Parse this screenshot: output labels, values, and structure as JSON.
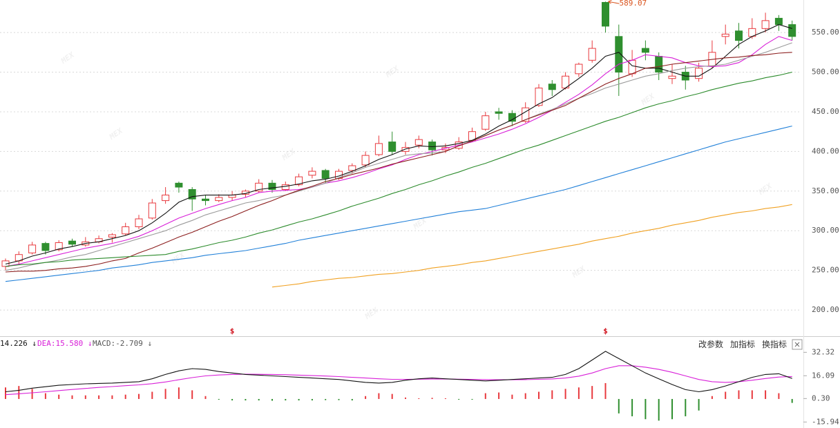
{
  "chart_data": [
    {
      "type": "candlestick",
      "open": [
        255,
        262,
        272,
        284,
        276,
        287,
        282,
        286,
        292,
        296,
        305,
        316,
        338,
        360,
        352,
        340,
        338,
        342,
        346,
        350,
        360,
        352,
        358,
        370,
        376,
        366,
        376,
        383,
        396,
        412,
        400,
        408,
        412,
        402,
        404,
        414,
        428,
        450,
        448,
        438,
        458,
        485,
        480,
        498,
        515,
        588,
        545,
        498,
        530,
        520,
        492,
        500,
        492,
        508,
        545,
        552,
        545,
        555,
        568,
        560
      ],
      "high": [
        265,
        274,
        286,
        286,
        288,
        290,
        292,
        294,
        297,
        310,
        320,
        340,
        355,
        362,
        355,
        345,
        346,
        350,
        352,
        365,
        364,
        362,
        372,
        380,
        378,
        378,
        385,
        400,
        420,
        425,
        412,
        420,
        415,
        410,
        418,
        430,
        450,
        455,
        452,
        462,
        485,
        490,
        500,
        512,
        540,
        589.07,
        560,
        528,
        540,
        525,
        510,
        508,
        512,
        540,
        560,
        562,
        568,
        575,
        572,
        565
      ],
      "low": [
        250,
        258,
        270,
        270,
        274,
        280,
        280,
        284,
        285,
        294,
        302,
        314,
        334,
        348,
        325,
        332,
        336,
        338,
        342,
        348,
        348,
        350,
        356,
        366,
        360,
        364,
        372,
        380,
        394,
        396,
        396,
        404,
        395,
        398,
        402,
        412,
        426,
        440,
        432,
        436,
        456,
        470,
        478,
        494,
        512,
        550,
        470,
        494,
        515,
        490,
        485,
        478,
        488,
        505,
        535,
        530,
        542,
        550,
        552,
        540
      ],
      "close": [
        262,
        270,
        282,
        275,
        285,
        283,
        286,
        290,
        295,
        305,
        315,
        335,
        345,
        355,
        340,
        338,
        342,
        345,
        350,
        360,
        352,
        358,
        368,
        375,
        366,
        375,
        382,
        395,
        410,
        400,
        405,
        415,
        402,
        405,
        412,
        425,
        445,
        448,
        438,
        455,
        480,
        478,
        495,
        510,
        530,
        558,
        500,
        515,
        525,
        500,
        495,
        490,
        505,
        525,
        548,
        540,
        555,
        565,
        560,
        545
      ],
      "up_color": "#e8383d",
      "down_color": "#2f8f2f",
      "series": [
        {
          "color": "#111111",
          "values": [
            258,
            262,
            268,
            272,
            277,
            280,
            284,
            286,
            290,
            294,
            300,
            310,
            322,
            336,
            343,
            345,
            345,
            345,
            347,
            352,
            354,
            356,
            359,
            363,
            365,
            369,
            375,
            382,
            390,
            396,
            403,
            407,
            406,
            407,
            410,
            414,
            422,
            432,
            440,
            450,
            460,
            468,
            480,
            492,
            505,
            520,
            525,
            508,
            505,
            505,
            500,
            495,
            495,
            505,
            520,
            535,
            545,
            552,
            560,
            555
          ]
        },
        {
          "color": "#d81ed8",
          "values": [
            255,
            258,
            262,
            266,
            270,
            274,
            278,
            281,
            284,
            288,
            293,
            300,
            308,
            316,
            322,
            328,
            333,
            338,
            342,
            348,
            350,
            351,
            352,
            355,
            360,
            363,
            367,
            372,
            378,
            383,
            390,
            396,
            400,
            404,
            408,
            412,
            417,
            422,
            428,
            435,
            443,
            452,
            462,
            472,
            484,
            498,
            510,
            515,
            522,
            520,
            518,
            512,
            508,
            507,
            508,
            512,
            522,
            535,
            545,
            540
          ]
        },
        {
          "color": "#9a9a9a",
          "values": [
            250,
            253,
            257,
            260,
            263,
            267,
            270,
            275,
            280,
            285,
            290,
            295,
            300,
            307,
            313,
            320,
            325,
            330,
            335,
            338,
            342,
            345,
            350,
            355,
            360,
            367,
            373,
            380,
            385,
            390,
            395,
            397,
            398,
            400,
            407,
            413,
            420,
            427,
            433,
            440,
            447,
            453,
            460,
            467,
            473,
            480,
            485,
            490,
            495,
            498,
            502,
            505,
            507,
            508,
            510,
            515,
            520,
            525,
            531,
            537
          ]
        },
        {
          "color": "#8b1c1c",
          "values": [
            248,
            249,
            249,
            250,
            252,
            253,
            255,
            258,
            262,
            265,
            272,
            278,
            285,
            292,
            298,
            305,
            312,
            318,
            325,
            332,
            338,
            345,
            351,
            356,
            362,
            366,
            371,
            375,
            379,
            384,
            388,
            392,
            396,
            400,
            407,
            413,
            420,
            427,
            433,
            440,
            446,
            452,
            458,
            467,
            476,
            485,
            492,
            498,
            505,
            507,
            510,
            512,
            514,
            516,
            518,
            519,
            521,
            522,
            524,
            525
          ]
        },
        {
          "color": "#2a8a2a",
          "values": [
            255,
            257,
            258,
            260,
            261,
            263,
            264,
            265,
            266,
            267,
            268,
            269,
            270,
            274,
            277,
            281,
            285,
            288,
            292,
            297,
            301,
            306,
            311,
            315,
            320,
            325,
            331,
            336,
            341,
            347,
            352,
            358,
            363,
            369,
            374,
            380,
            385,
            391,
            397,
            403,
            408,
            414,
            420,
            426,
            432,
            438,
            443,
            449,
            455,
            460,
            464,
            469,
            473,
            478,
            482,
            486,
            489,
            493,
            496,
            500
          ]
        },
        {
          "color": "#1f7fd8",
          "values": [
            236,
            238,
            240,
            242,
            244,
            246,
            248,
            250,
            253,
            255,
            257,
            260,
            262,
            264,
            266,
            269,
            271,
            273,
            275,
            278,
            281,
            284,
            288,
            291,
            294,
            297,
            300,
            303,
            306,
            309,
            312,
            315,
            318,
            321,
            324,
            326,
            328,
            332,
            336,
            340,
            344,
            348,
            352,
            357,
            362,
            367,
            372,
            377,
            382,
            387,
            392,
            397,
            402,
            407,
            412,
            416,
            420,
            424,
            428,
            432
          ]
        },
        {
          "color": "#f0a020",
          "values": [
            null,
            null,
            null,
            null,
            null,
            null,
            null,
            null,
            null,
            null,
            null,
            null,
            null,
            null,
            null,
            null,
            null,
            null,
            null,
            null,
            229,
            231,
            233,
            236,
            238,
            240,
            241,
            243,
            245,
            246,
            248,
            250,
            253,
            255,
            257,
            260,
            262,
            265,
            268,
            271,
            274,
            277,
            280,
            283,
            287,
            290,
            293,
            297,
            300,
            303,
            307,
            310,
            313,
            317,
            320,
            323,
            325,
            328,
            330,
            333
          ]
        }
      ],
      "annotation": "589.07",
      "markers": [
        null,
        null,
        null,
        null,
        null,
        null,
        null,
        null,
        null,
        null,
        null,
        null,
        null,
        null,
        null,
        null,
        null,
        "$",
        null,
        null,
        null,
        null,
        null,
        null,
        null,
        null,
        null,
        null,
        null,
        null,
        null,
        null,
        null,
        null,
        null,
        null,
        null,
        null,
        null,
        null,
        null,
        null,
        null,
        null,
        null,
        "$",
        null,
        null,
        null,
        null,
        null,
        null,
        null,
        null,
        null,
        null,
        null,
        null,
        null,
        null
      ],
      "watermark": "MEX",
      "ylim": [
        167,
        591
      ],
      "yticks": [
        {
          "value": 200,
          "label": "200.00"
        },
        {
          "value": 250,
          "label": "250.00"
        },
        {
          "value": 300,
          "label": "300.00"
        },
        {
          "value": 350,
          "label": "350.00"
        },
        {
          "value": 400,
          "label": "400.00"
        },
        {
          "value": 450,
          "label": "450.00"
        },
        {
          "value": 500,
          "label": "500.00"
        },
        {
          "value": 550,
          "label": "550.00"
        }
      ],
      "grid": true
    },
    {
      "type": "macd",
      "dif": {
        "color": "#111111",
        "label": "14.226 ↓",
        "values": [
          5,
          6,
          7.5,
          8.5,
          9.5,
          10,
          10.5,
          10.8,
          11,
          11.5,
          12,
          14,
          17,
          19.5,
          21,
          20.5,
          19,
          18,
          17,
          16.5,
          16,
          15.5,
          15,
          14.5,
          14,
          13.5,
          12.5,
          11.5,
          11,
          11.5,
          13,
          14,
          14.5,
          14,
          13.5,
          13,
          12.5,
          13,
          13.5,
          14,
          14.5,
          15,
          17,
          21,
          27,
          33,
          28,
          23,
          18,
          14,
          10,
          6.5,
          5,
          6.5,
          9,
          12,
          15,
          17,
          17.5,
          14.226
        ]
      },
      "dea": {
        "color": "#d81ed8",
        "label": "DEA:15.580 ↓",
        "values": [
          3,
          3.6,
          4.3,
          5,
          5.8,
          6.6,
          7.3,
          8,
          8.6,
          9.2,
          9.8,
          10.6,
          11.8,
          13.3,
          14.8,
          16,
          16.6,
          17,
          17.2,
          17.1,
          17,
          16.8,
          16.5,
          16.2,
          15.9,
          15.5,
          15,
          14.5,
          14,
          13.6,
          13.6,
          13.7,
          13.8,
          13.8,
          13.7,
          13.6,
          13.4,
          13.3,
          13.3,
          13.4,
          13.6,
          13.9,
          14.5,
          15.8,
          18,
          21,
          23,
          23,
          22,
          20.5,
          18.5,
          16,
          13.5,
          12,
          11.5,
          12,
          13,
          14.2,
          15.2,
          15.58
        ]
      },
      "macd": {
        "label": "MACD:-2.709 ↓",
        "up_color": "#e8383d",
        "down_color": "#2f8f2f",
        "values": [
          8,
          9,
          7,
          4,
          3,
          2.5,
          2.5,
          2.5,
          2.5,
          3,
          3.5,
          5,
          7,
          8,
          6,
          2,
          -0.5,
          -1,
          -1,
          -1,
          -1.2,
          -1,
          -1,
          -1,
          -0.8,
          -0.8,
          -1,
          2,
          4,
          3.5,
          1,
          0.5,
          0.8,
          0.5,
          -0.5,
          -0.5,
          4,
          4.5,
          3,
          4,
          5,
          6,
          7,
          8,
          9,
          11,
          -10,
          -12,
          -14,
          -15,
          -14,
          -12,
          -8,
          2,
          5,
          6,
          6,
          6,
          4,
          -2.709
        ]
      },
      "buttons": [
        "改参数",
        "加指标",
        "换指标"
      ],
      "ylim": [
        -20.1,
        42.05
      ],
      "yticks": [
        32.32,
        16.09,
        {
          "value": 0.3,
          "label": "0.30"
        },
        -15.94
      ]
    }
  ]
}
